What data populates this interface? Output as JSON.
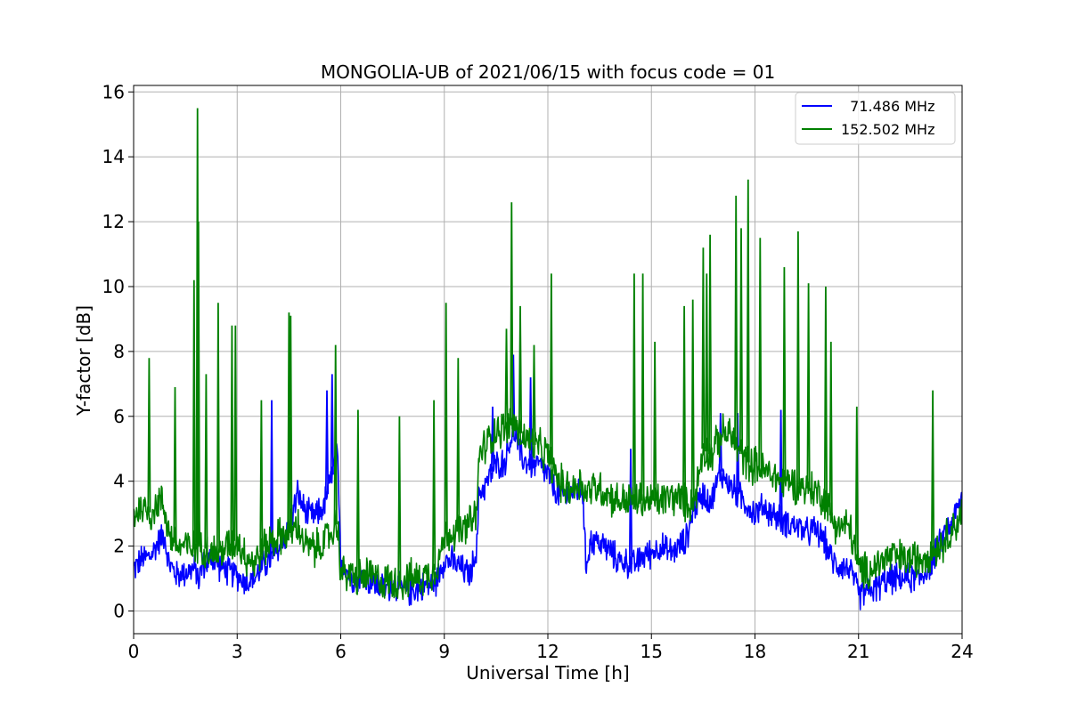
{
  "chart_data": {
    "type": "line",
    "title": "MONGOLIA-UB of 2021/06/15 with focus code = 01",
    "xlabel": "Universal Time [h]",
    "ylabel": "Y-factor [dB]",
    "xlim": [
      0,
      24
    ],
    "ylim": [
      -0.7,
      16.2
    ],
    "xticks": [
      0,
      3,
      6,
      9,
      12,
      15,
      18,
      21,
      24
    ],
    "yticks": [
      0,
      2,
      4,
      6,
      8,
      10,
      12,
      14,
      16
    ],
    "grid": true,
    "legend_position": "top-right",
    "series": [
      {
        "name": "71.486 MHz",
        "label": "  71.486 MHz",
        "color": "#0000ff",
        "x": [
          0,
          0.25,
          0.5,
          0.75,
          0.9,
          1.0,
          1.25,
          1.5,
          1.75,
          1.9,
          2.0,
          2.25,
          2.5,
          2.75,
          3.0,
          3.25,
          3.5,
          3.75,
          4.0,
          4.25,
          4.5,
          4.75,
          5.0,
          5.25,
          5.5,
          5.75,
          5.9,
          6.0,
          6.25,
          6.5,
          6.75,
          7.0,
          7.25,
          7.5,
          7.75,
          8.0,
          8.25,
          8.5,
          8.75,
          9.0,
          9.25,
          9.5,
          9.75,
          9.95,
          10.0,
          10.25,
          10.5,
          10.75,
          11.0,
          11.25,
          11.5,
          11.75,
          12.0,
          12.25,
          12.5,
          12.75,
          13.0,
          13.1,
          13.25,
          13.5,
          13.75,
          14.0,
          14.25,
          14.5,
          14.75,
          15.0,
          15.25,
          15.5,
          15.75,
          16.0,
          16.25,
          16.5,
          16.75,
          17.0,
          17.25,
          17.5,
          17.75,
          18.0,
          18.25,
          18.5,
          18.75,
          19.0,
          19.25,
          19.5,
          19.75,
          20.0,
          20.25,
          20.5,
          20.75,
          21.0,
          21.25,
          21.5,
          21.75,
          22.0,
          22.25,
          22.5,
          22.75,
          23.0,
          23.25,
          23.5,
          23.75,
          24.0
        ],
        "values": [
          1.3,
          1.6,
          1.7,
          2.2,
          2.4,
          1.5,
          1.1,
          1.2,
          1.3,
          1.0,
          1.4,
          1.6,
          1.4,
          1.2,
          1.1,
          0.9,
          1.0,
          1.4,
          1.6,
          2.0,
          2.6,
          3.6,
          3.0,
          2.9,
          3.2,
          4.2,
          4.8,
          1.6,
          1.1,
          1.0,
          1.0,
          0.8,
          0.7,
          0.8,
          0.7,
          0.6,
          0.7,
          0.8,
          0.9,
          1.6,
          1.5,
          1.3,
          1.1,
          2.0,
          3.6,
          4.0,
          4.5,
          4.6,
          5.6,
          4.7,
          4.5,
          4.5,
          4.2,
          3.6,
          3.5,
          3.7,
          3.8,
          1.4,
          2.2,
          2.1,
          1.9,
          1.6,
          1.5,
          1.4,
          1.7,
          1.8,
          2.0,
          1.8,
          1.9,
          2.2,
          3.2,
          3.6,
          3.4,
          4.3,
          3.9,
          3.6,
          3.3,
          3.0,
          3.2,
          3.0,
          2.8,
          2.7,
          2.6,
          2.4,
          2.5,
          2.2,
          1.5,
          1.4,
          1.3,
          0.5,
          0.6,
          0.7,
          0.9,
          1.0,
          1.0,
          1.0,
          1.0,
          1.3,
          1.8,
          2.4,
          2.8,
          3.5
        ]
      },
      {
        "name": "152.502 MHz",
        "label": "152.502 MHz",
        "color": "#008000",
        "x": [
          0,
          0.25,
          0.5,
          0.75,
          0.9,
          1.0,
          1.25,
          1.5,
          1.75,
          1.9,
          2.0,
          2.25,
          2.5,
          2.75,
          3.0,
          3.25,
          3.5,
          3.75,
          4.0,
          4.25,
          4.5,
          4.75,
          5.0,
          5.25,
          5.5,
          5.75,
          5.9,
          6.0,
          6.25,
          6.5,
          6.75,
          7.0,
          7.25,
          7.5,
          7.75,
          8.0,
          8.25,
          8.5,
          8.75,
          9.0,
          9.25,
          9.5,
          9.75,
          9.95,
          10.0,
          10.25,
          10.5,
          10.75,
          11.0,
          11.25,
          11.5,
          11.75,
          12.0,
          12.25,
          12.5,
          12.75,
          13.0,
          13.1,
          13.25,
          13.5,
          13.75,
          14.0,
          14.25,
          14.5,
          14.75,
          15.0,
          15.25,
          15.5,
          15.75,
          16.0,
          16.25,
          16.5,
          16.75,
          17.0,
          17.25,
          17.5,
          17.75,
          18.0,
          18.25,
          18.5,
          18.75,
          19.0,
          19.25,
          19.5,
          19.75,
          20.0,
          20.25,
          20.5,
          20.75,
          21.0,
          21.25,
          21.5,
          21.75,
          22.0,
          22.25,
          22.5,
          22.75,
          23.0,
          23.25,
          23.5,
          23.75,
          24.0
        ],
        "values": [
          3.0,
          3.2,
          3.0,
          3.4,
          3.2,
          2.5,
          2.0,
          2.0,
          1.9,
          2.2,
          2.0,
          1.8,
          1.8,
          2.0,
          2.2,
          1.7,
          1.5,
          1.9,
          2.2,
          2.3,
          2.4,
          2.6,
          2.0,
          1.9,
          2.1,
          2.4,
          2.8,
          1.2,
          1.1,
          1.0,
          1.1,
          1.0,
          0.9,
          0.9,
          0.9,
          1.0,
          1.0,
          1.1,
          1.3,
          2.2,
          2.5,
          2.4,
          2.7,
          3.0,
          4.8,
          5.2,
          5.6,
          5.6,
          5.8,
          5.4,
          5.2,
          5.0,
          4.8,
          4.1,
          3.8,
          3.8,
          4.0,
          3.6,
          3.8,
          3.8,
          3.6,
          3.4,
          3.4,
          3.4,
          3.4,
          3.4,
          3.4,
          3.5,
          3.5,
          3.3,
          3.4,
          5.0,
          4.8,
          5.4,
          5.5,
          5.0,
          4.6,
          4.5,
          4.3,
          4.2,
          4.0,
          4.0,
          3.9,
          3.8,
          3.7,
          3.5,
          2.8,
          2.6,
          2.6,
          1.3,
          1.2,
          1.4,
          1.6,
          1.7,
          1.6,
          1.6,
          1.6,
          1.8,
          1.9,
          2.2,
          2.6,
          3.0
        ]
      }
    ],
    "spikes": [
      {
        "series": "152.502 MHz",
        "x": [
          0.45,
          1.2,
          1.75,
          1.85,
          1.88,
          2.1,
          2.45,
          2.85,
          2.95,
          3.7,
          4.5,
          4.55,
          5.85,
          6.5,
          7.7,
          8.7,
          9.05,
          9.4,
          10.8,
          10.95,
          11.2,
          11.6,
          12.1,
          14.5,
          14.75,
          15.1,
          15.95,
          16.2,
          16.5,
          16.6,
          16.7,
          17.45,
          17.6,
          17.8,
          18.15,
          18.85,
          19.25,
          19.55,
          20.05,
          20.2,
          20.95,
          23.15
        ],
        "values": [
          7.8,
          6.9,
          10.2,
          15.5,
          12.0,
          7.3,
          9.5,
          8.8,
          8.8,
          6.5,
          9.2,
          9.1,
          8.2,
          6.2,
          6.0,
          6.5,
          9.5,
          7.8,
          8.7,
          12.6,
          9.4,
          8.2,
          10.4,
          10.4,
          10.4,
          8.3,
          9.4,
          9.6,
          11.2,
          10.4,
          11.6,
          12.8,
          11.8,
          13.3,
          11.5,
          10.6,
          11.7,
          10.1,
          10.0,
          8.3,
          6.3,
          6.8
        ]
      },
      {
        "series": "71.486 MHz",
        "x": [
          4.0,
          5.6,
          5.75,
          10.4,
          11.0,
          11.5,
          14.4,
          17.0,
          17.5,
          18.75
        ],
        "values": [
          6.5,
          6.8,
          7.3,
          6.3,
          7.9,
          7.2,
          5.0,
          6.1,
          6.1,
          6.2
        ]
      }
    ]
  }
}
